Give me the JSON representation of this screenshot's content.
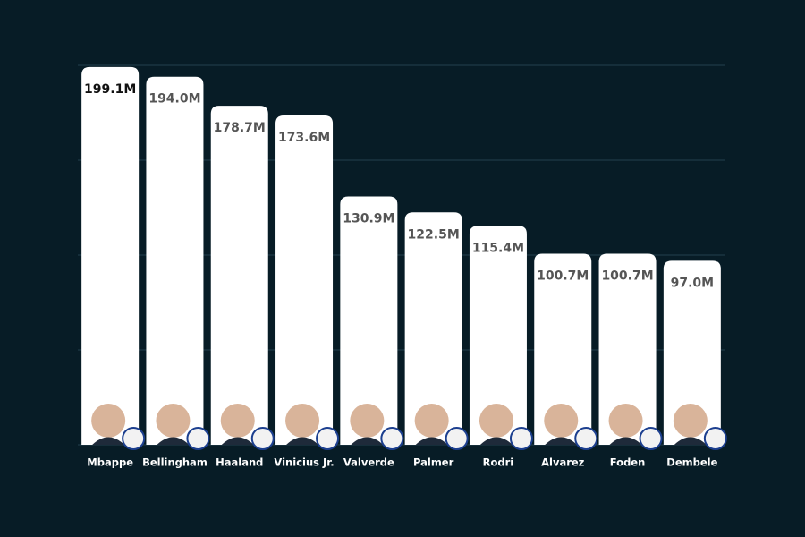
{
  "chart_data": {
    "type": "bar",
    "categories": [
      "Mbappe",
      "Bellingham",
      "Haaland",
      "Vinicius Jr.",
      "Valverde",
      "Palmer",
      "Rodri",
      "Alvarez",
      "Foden",
      "Dembele"
    ],
    "values": [
      199.1,
      194.0,
      178.7,
      173.6,
      130.9,
      122.5,
      115.4,
      100.7,
      100.7,
      97.0
    ],
    "value_labels": [
      "199.1M",
      "194.0M",
      "178.7M",
      "173.6M",
      "130.9M",
      "122.5M",
      "115.4M",
      "100.7M",
      "100.7M",
      "97.0M"
    ],
    "color": "#ffffff",
    "ylim": [
      0,
      200
    ],
    "yticks": [
      0,
      50,
      100,
      150,
      200
    ],
    "grid": true
  }
}
